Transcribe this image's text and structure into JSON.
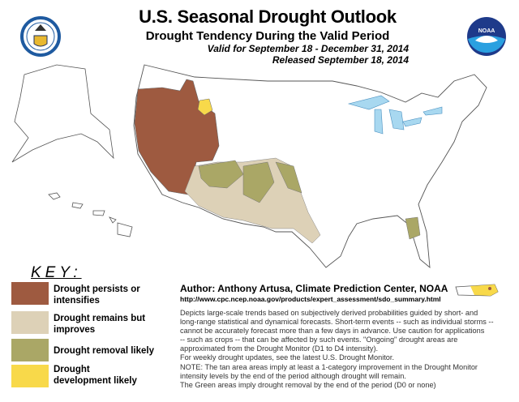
{
  "header": {
    "title": "U.S. Seasonal Drought Outlook",
    "subtitle": "Drought Tendency During the Valid Period",
    "valid": "Valid for September 18 - December 31, 2014",
    "released": "Released September 18, 2014"
  },
  "logos": {
    "left": "commerce-seal",
    "right": "NOAA"
  },
  "colors": {
    "persists": "#9e5a40",
    "improves": "#ddd1b7",
    "removal": "#aaa766",
    "development": "#f8d94a",
    "water": "#a8d8f0"
  },
  "key": {
    "title": "KEY:",
    "items": [
      {
        "label": "Drought persists or intensifies"
      },
      {
        "label": "Drought remains but improves"
      },
      {
        "label": "Drought removal likely"
      },
      {
        "label": "Drought development likely"
      }
    ]
  },
  "footer": {
    "author": "Author: Anthony Artusa, Climate Prediction Center, NOAA",
    "url": "http://www.cpc.ncep.noaa.gov/products/expert_assessment/sdo_summary.html",
    "description": [
      "Depicts large-scale trends based on subjectively derived probabilities guided by short- and",
      "long-range statistical and dynamical forecasts. Short-term events -- such as individual storms --",
      "cannot be accurately forecast more than a few days in advance. Use caution for applications",
      "-- such as crops -- that can be affected by such events. \"Ongoing\" drought areas are",
      "approximated from the Drought Monitor (D1 to D4 intensity).",
      "For weekly drought updates, see the latest U.S. Drought Monitor.",
      "NOTE: The tan area areas imply at least a 1-category improvement in the Drought Monitor",
      "intensity levels by the end of the period although drought will remain.",
      "The Green areas imply drought removal by the end of the period (D0 or none)"
    ]
  }
}
